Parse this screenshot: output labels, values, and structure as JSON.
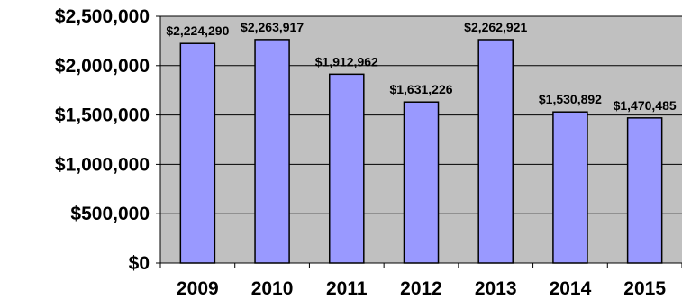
{
  "chart_data": {
    "type": "bar",
    "categories": [
      "2009",
      "2010",
      "2011",
      "2012",
      "2013",
      "2014",
      "2015"
    ],
    "values": [
      2224290,
      2263917,
      1912962,
      1631226,
      2262921,
      1530892,
      1470485
    ],
    "data_labels": [
      "$2,224,290",
      "$2,263,917",
      "$1,912,962",
      "$1,631,226",
      "$2,262,921",
      "$1,530,892",
      "$1,470,485"
    ],
    "y_ticks": [
      {
        "value": 0,
        "label": "$0"
      },
      {
        "value": 500000,
        "label": "$500,000"
      },
      {
        "value": 1000000,
        "label": "$1,000,000"
      },
      {
        "value": 1500000,
        "label": "$1,500,000"
      },
      {
        "value": 2000000,
        "label": "$2,000,000"
      },
      {
        "value": 2500000,
        "label": "$2,500,000"
      }
    ],
    "ylim": [
      0,
      2500000
    ],
    "grid": true,
    "legend": "none",
    "colors": {
      "plot_background": "#c0c0c0",
      "bar_fill": "#9999ff",
      "bar_stroke": "#000000",
      "gridline": "#000000"
    }
  }
}
